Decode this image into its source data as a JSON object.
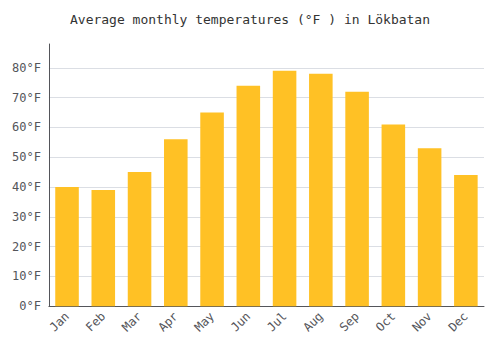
{
  "chart_data": {
    "type": "bar",
    "title": "Average monthly temperatures (°F ) in Lökbatan",
    "categories": [
      "Jan",
      "Feb",
      "Mar",
      "Apr",
      "May",
      "Jun",
      "Jul",
      "Aug",
      "Sep",
      "Oct",
      "Nov",
      "Dec"
    ],
    "values": [
      40,
      39,
      45,
      56,
      65,
      74,
      79,
      78,
      72,
      61,
      53,
      44
    ],
    "color": "#FFC125",
    "ylim": [
      0,
      88
    ],
    "yticks": [
      {
        "value": 0,
        "label": "0°F"
      },
      {
        "value": 10,
        "label": "10°F"
      },
      {
        "value": 20,
        "label": "20°F"
      },
      {
        "value": 30,
        "label": "30°F"
      },
      {
        "value": 40,
        "label": "40°F"
      },
      {
        "value": 50,
        "label": "50°F"
      },
      {
        "value": 60,
        "label": "60°F"
      },
      {
        "value": 70,
        "label": "70°F"
      },
      {
        "value": 80,
        "label": "80°F"
      }
    ],
    "grid": true
  }
}
